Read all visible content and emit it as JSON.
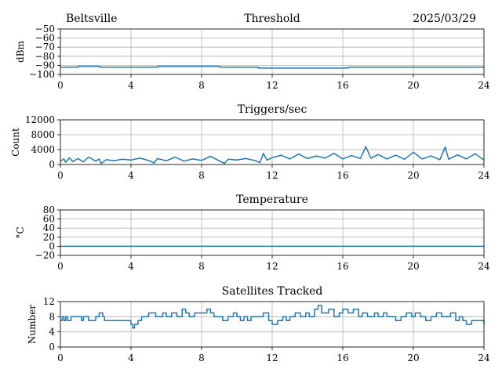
{
  "header": {
    "station": "Beltsville",
    "date": "2025/03/29"
  },
  "chart_data": [
    {
      "type": "line",
      "title": "Threshold",
      "xlabel": "",
      "ylabel": "dBm",
      "xlim": [
        0,
        24
      ],
      "ylim": [
        -100,
        -50
      ],
      "xticks": [
        0,
        4,
        8,
        12,
        16,
        20,
        24
      ],
      "yticks": [
        -100,
        -90,
        -80,
        -70,
        -60,
        -50
      ],
      "grid": true,
      "color": "#1f77b4",
      "series": [
        {
          "x": [
            0,
            1,
            1.01,
            2.2,
            2.21,
            5.5,
            5.51,
            9,
            9.01,
            11.2,
            11.21,
            16.3,
            16.31,
            21.5,
            21.51,
            24
          ],
          "values": [
            -92,
            -92,
            -91,
            -91,
            -92,
            -92,
            -91,
            -91,
            -92,
            -92,
            -93,
            -93,
            -92,
            -92,
            -92,
            -92
          ]
        }
      ]
    },
    {
      "type": "line",
      "title": "Triggers/sec",
      "xlabel": "",
      "ylabel": "Count",
      "xlim": [
        0,
        24
      ],
      "ylim": [
        0,
        12000
      ],
      "xticks": [
        0,
        4,
        8,
        12,
        16,
        20,
        24
      ],
      "yticks": [
        0,
        4000,
        8000,
        12000
      ],
      "ytick_labels": [
        "0",
        "4000",
        "8000",
        "12000"
      ],
      "grid": true,
      "color": "#1f77b4",
      "series": [
        {
          "x": [
            0,
            0.2,
            0.3,
            0.5,
            0.7,
            1.0,
            1.3,
            1.6,
            2.0,
            2.2,
            2.3,
            2.6,
            3.0,
            3.5,
            4.0,
            4.5,
            5.0,
            5.3,
            5.5,
            6.0,
            6.5,
            7.0,
            7.5,
            8.0,
            8.5,
            9.0,
            9.3,
            9.5,
            10.0,
            10.5,
            11.0,
            11.3,
            11.5,
            11.7,
            12.0,
            12.5,
            13.0,
            13.5,
            14.0,
            14.5,
            15.0,
            15.5,
            16.0,
            16.5,
            17.0,
            17.3,
            17.6,
            18.0,
            18.5,
            19.0,
            19.5,
            20.0,
            20.5,
            21.0,
            21.5,
            21.8,
            22.0,
            22.5,
            23.0,
            23.5,
            24.0
          ],
          "values": [
            900,
            1500,
            600,
            1800,
            800,
            1600,
            700,
            2000,
            900,
            1500,
            300,
            1300,
            1000,
            1400,
            1200,
            1700,
            1100,
            400,
            1600,
            1000,
            2000,
            900,
            1500,
            1100,
            2200,
            1000,
            300,
            1400,
            1200,
            1600,
            1100,
            500,
            3000,
            1200,
            1800,
            2500,
            1500,
            2800,
            1600,
            2300,
            1700,
            3000,
            1500,
            2400,
            1600,
            4800,
            1700,
            2700,
            1500,
            2500,
            1400,
            3300,
            1500,
            2300,
            1300,
            4700,
            1400,
            2600,
            1500,
            2900,
            1200
          ]
        }
      ]
    },
    {
      "type": "line",
      "title": "Temperature",
      "xlabel": "",
      "ylabel": "°C",
      "xlim": [
        0,
        24
      ],
      "ylim": [
        -20,
        80
      ],
      "xticks": [
        0,
        4,
        8,
        12,
        16,
        20,
        24
      ],
      "yticks": [
        -20,
        0,
        20,
        40,
        60,
        80
      ],
      "grid": true,
      "color": "#1f77b4",
      "series": [
        {
          "x": [
            0,
            24
          ],
          "values": [
            0,
            0
          ]
        }
      ]
    },
    {
      "type": "line",
      "title": "Satellites Tracked",
      "xlabel": "",
      "ylabel": "Number",
      "xlim": [
        0,
        24
      ],
      "ylim": [
        0,
        12
      ],
      "xticks": [
        0,
        4,
        8,
        12,
        16,
        20,
        24
      ],
      "yticks": [
        0,
        4,
        8,
        12
      ],
      "grid": true,
      "step": true,
      "color": "#1f77b4",
      "series": [
        {
          "x": [
            0,
            0.1,
            0.2,
            0.3,
            0.4,
            0.6,
            1.0,
            1.2,
            1.3,
            1.6,
            2.0,
            2.2,
            2.4,
            2.5,
            2.7,
            3.0,
            3.5,
            3.8,
            4.0,
            4.1,
            4.2,
            4.4,
            4.6,
            4.8,
            5.0,
            5.4,
            5.8,
            6.0,
            6.3,
            6.6,
            6.9,
            7.1,
            7.3,
            7.6,
            8.0,
            8.3,
            8.5,
            8.7,
            9.0,
            9.2,
            9.5,
            9.8,
            10.0,
            10.2,
            10.4,
            10.6,
            10.8,
            11.0,
            11.2,
            11.5,
            11.8,
            12.0,
            12.3,
            12.6,
            12.8,
            13.0,
            13.3,
            13.6,
            13.9,
            14.1,
            14.4,
            14.6,
            14.8,
            15.0,
            15.2,
            15.5,
            15.8,
            16.0,
            16.3,
            16.6,
            16.9,
            17.1,
            17.4,
            17.8,
            18.0,
            18.3,
            18.5,
            18.8,
            19.0,
            19.3,
            19.6,
            19.9,
            20.1,
            20.4,
            20.7,
            21.0,
            21.3,
            21.6,
            21.9,
            22.1,
            22.4,
            22.6,
            22.8,
            23.0,
            23.3,
            23.6,
            24.0
          ],
          "values": [
            7,
            8,
            7,
            8,
            7,
            8,
            8,
            7,
            8,
            7,
            8,
            9,
            8,
            7,
            7,
            7,
            7,
            7,
            6,
            5,
            6,
            7,
            8,
            8,
            9,
            8,
            9,
            8,
            9,
            8,
            10,
            9,
            8,
            9,
            9,
            10,
            9,
            8,
            8,
            7,
            8,
            9,
            8,
            7,
            8,
            7,
            8,
            8,
            8,
            9,
            7,
            6,
            7,
            8,
            7,
            8,
            9,
            8,
            9,
            8,
            10,
            11,
            9,
            9,
            10,
            8,
            9,
            10,
            9,
            10,
            8,
            9,
            8,
            9,
            8,
            9,
            8,
            8,
            7,
            8,
            9,
            8,
            9,
            8,
            7,
            8,
            9,
            8,
            8,
            9,
            7,
            8,
            7,
            6,
            7,
            7,
            6
          ]
        }
      ]
    }
  ]
}
